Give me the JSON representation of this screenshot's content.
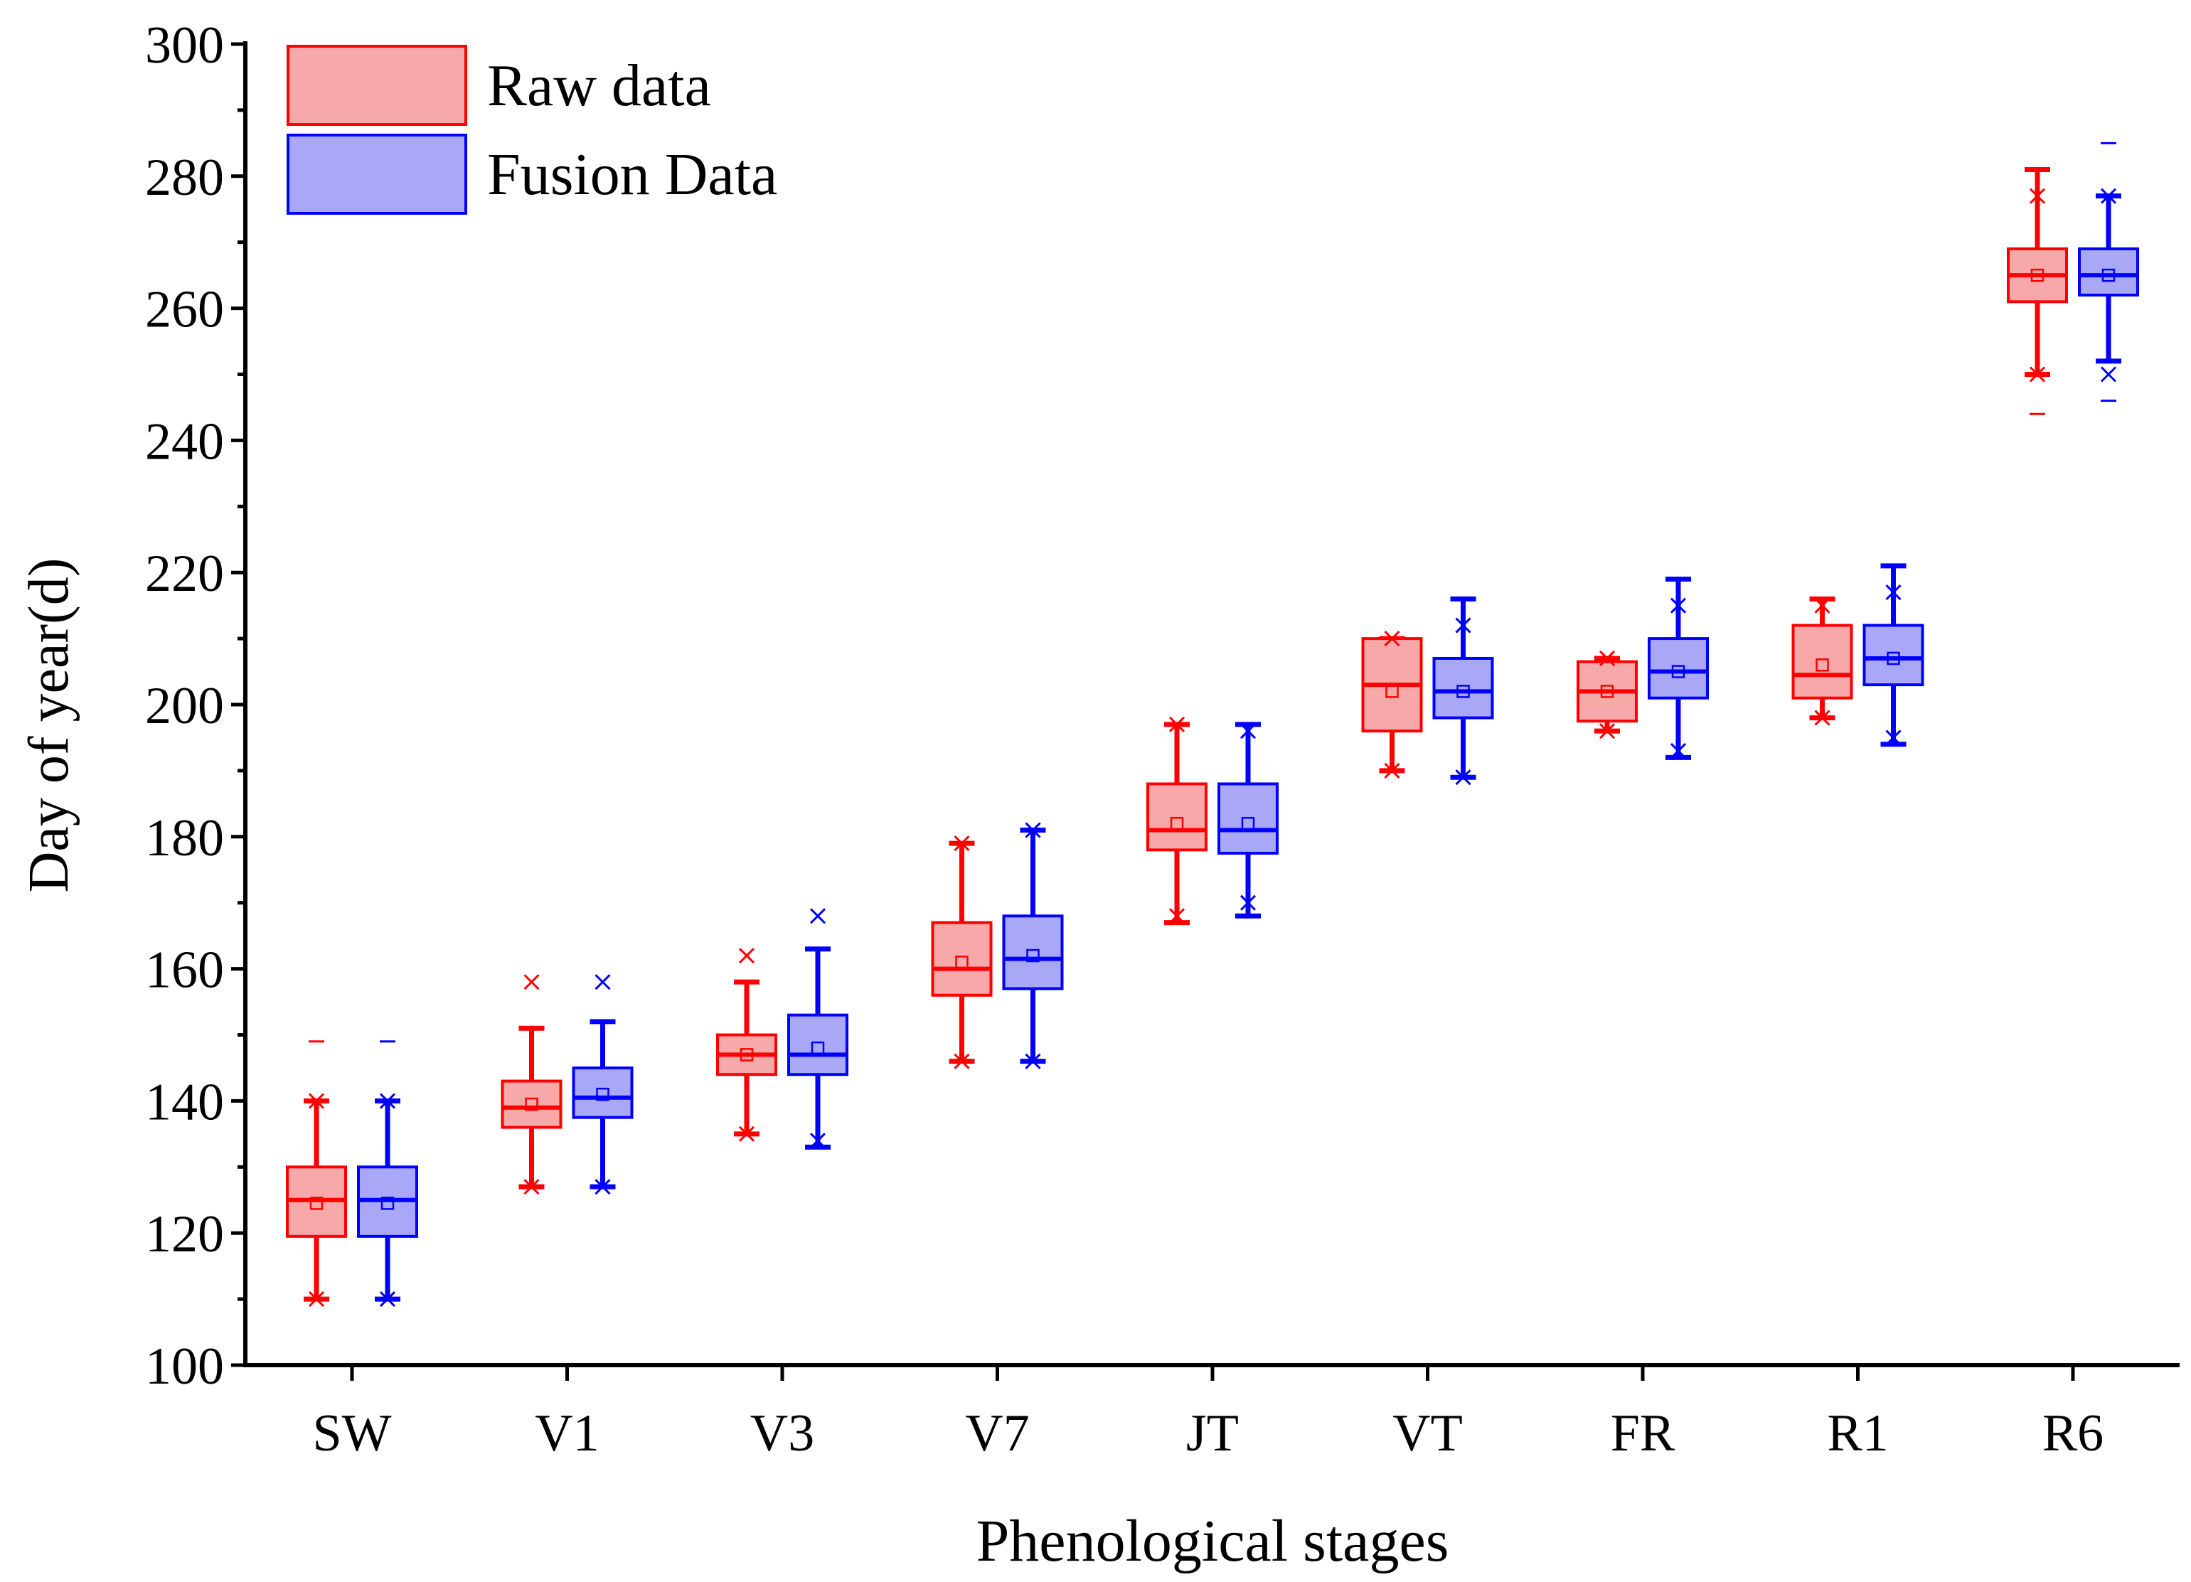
{
  "chart_data": {
    "type": "box",
    "title": "",
    "xlabel": "Phenological stages",
    "ylabel": "Day of year(d)",
    "ylim": [
      100,
      300
    ],
    "yticks": [
      100,
      120,
      140,
      160,
      180,
      200,
      220,
      240,
      260,
      280,
      300
    ],
    "categories": [
      "SW",
      "V1",
      "V3",
      "V7",
      "JT",
      "VT",
      "FR",
      "R1",
      "R6"
    ],
    "legend_position": "top-left",
    "series": [
      {
        "name": "Raw data",
        "stroke": "#ff0000",
        "fill": "#f7a8a8",
        "boxes": [
          {
            "whisker_low": 110,
            "q1": 119.5,
            "median": 125,
            "q3": 130,
            "whisker_high": 140,
            "mean": 124.5,
            "pct1": 110,
            "pct99": 140,
            "max_outlier": 149
          },
          {
            "whisker_low": 127,
            "q1": 136,
            "median": 139,
            "q3": 143,
            "whisker_high": 151,
            "mean": 139.5,
            "pct1": 127,
            "pct99": 158
          },
          {
            "whisker_low": 135,
            "q1": 144,
            "median": 147,
            "q3": 150,
            "whisker_high": 158,
            "mean": 147,
            "pct1": 135,
            "pct99": 162
          },
          {
            "whisker_low": 146,
            "q1": 156,
            "median": 160,
            "q3": 167,
            "whisker_high": 179,
            "mean": 161,
            "pct1": 146,
            "pct99": 179
          },
          {
            "whisker_low": 167,
            "q1": 178,
            "median": 181,
            "q3": 188,
            "whisker_high": 197,
            "mean": 182,
            "pct1": 168,
            "pct99": 197
          },
          {
            "whisker_low": 190,
            "q1": 196,
            "median": 203,
            "q3": 210,
            "whisker_high": 210,
            "mean": 202,
            "pct1": 190,
            "pct99": 210
          },
          {
            "whisker_low": 196,
            "q1": 197.5,
            "median": 202,
            "q3": 206.5,
            "whisker_high": 207,
            "mean": 202,
            "pct1": 196,
            "pct99": 207
          },
          {
            "whisker_low": 198,
            "q1": 201,
            "median": 204.5,
            "q3": 212,
            "whisker_high": 216,
            "mean": 206,
            "pct1": 198,
            "pct99": 215
          },
          {
            "whisker_low": 250,
            "q1": 261,
            "median": 265,
            "q3": 269,
            "whisker_high": 281,
            "mean": 265,
            "pct1": 250,
            "pct99": 277,
            "min_outlier": 244
          }
        ]
      },
      {
        "name": "Fusion Data",
        "stroke": "#0000ff",
        "fill": "#a8a8f7",
        "boxes": [
          {
            "whisker_low": 110,
            "q1": 119.5,
            "median": 125,
            "q3": 130,
            "whisker_high": 140,
            "mean": 124.5,
            "pct1": 110,
            "pct99": 140,
            "max_outlier": 149
          },
          {
            "whisker_low": 127,
            "q1": 137.5,
            "median": 140.5,
            "q3": 145,
            "whisker_high": 152,
            "mean": 141,
            "pct1": 127,
            "pct99": 158
          },
          {
            "whisker_low": 133,
            "q1": 144,
            "median": 147,
            "q3": 153,
            "whisker_high": 163,
            "mean": 148,
            "pct1": 134,
            "pct99": 168
          },
          {
            "whisker_low": 146,
            "q1": 157,
            "median": 161.5,
            "q3": 168,
            "whisker_high": 181,
            "mean": 162,
            "pct1": 146,
            "pct99": 181
          },
          {
            "whisker_low": 168,
            "q1": 177.5,
            "median": 181,
            "q3": 188,
            "whisker_high": 197,
            "mean": 182,
            "pct1": 170,
            "pct99": 196
          },
          {
            "whisker_low": 189,
            "q1": 198,
            "median": 202,
            "q3": 207,
            "whisker_high": 216,
            "mean": 202,
            "pct1": 189,
            "pct99": 212
          },
          {
            "whisker_low": 192,
            "q1": 201,
            "median": 205,
            "q3": 210,
            "whisker_high": 219,
            "mean": 205,
            "pct1": 193,
            "pct99": 215
          },
          {
            "whisker_low": 194,
            "q1": 203,
            "median": 207,
            "q3": 212,
            "whisker_high": 221,
            "mean": 207,
            "pct1": 195,
            "pct99": 217
          },
          {
            "whisker_low": 252,
            "q1": 262,
            "median": 265,
            "q3": 269,
            "whisker_high": 277,
            "mean": 265,
            "pct1": 250,
            "pct99": 277,
            "min_outlier": 246,
            "max_outlier": 285
          }
        ]
      }
    ]
  }
}
